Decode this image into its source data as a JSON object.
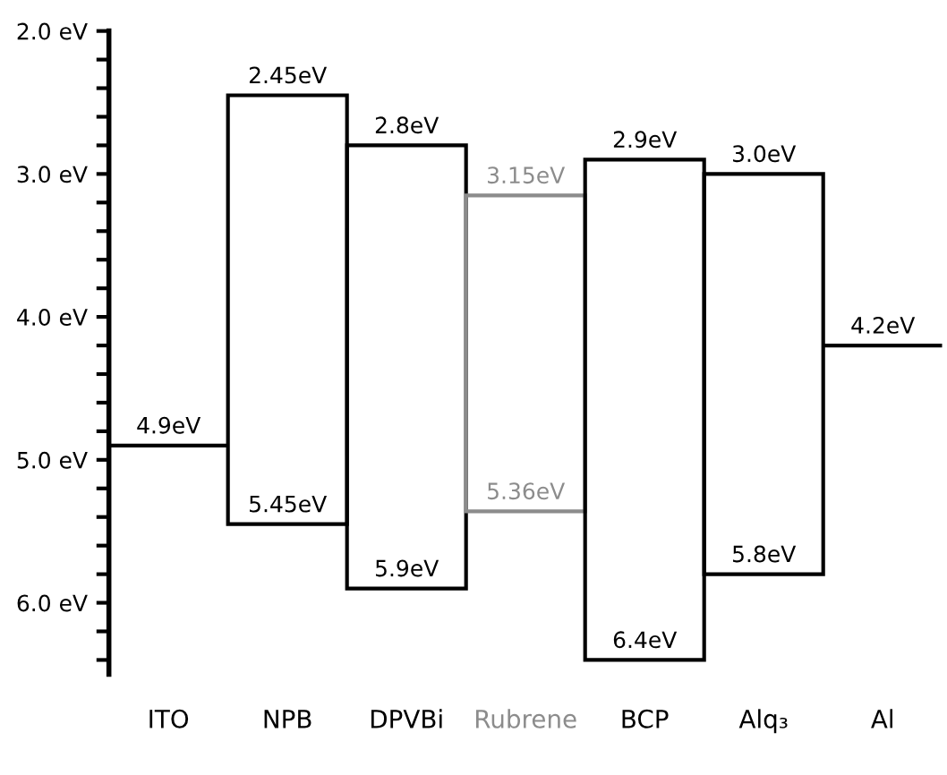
{
  "chart_data": {
    "type": "bar",
    "categories": [
      "ITO",
      "NPB",
      "DPVBi",
      "Rubrene",
      "BCP",
      "Alq₃",
      "Al"
    ],
    "base": [
      4.9,
      2.45,
      2.8,
      3.15,
      2.9,
      3.0,
      4.2
    ],
    "values": [
      0,
      3.0,
      3.1,
      2.21,
      3.5,
      2.8,
      0
    ],
    "colors": [
      "#000000",
      "#000000",
      "#000000",
      "#8c8c8c",
      "#000000",
      "#000000",
      "#000000"
    ],
    "ylim": [
      6.5,
      2.0
    ],
    "yticks": [
      {
        "value": 2.0,
        "label": "2.0 eV"
      },
      {
        "value": 2.2,
        "label": null
      },
      {
        "value": 2.4,
        "label": null
      },
      {
        "value": 2.6,
        "label": null
      },
      {
        "value": 2.8,
        "label": null
      },
      {
        "value": 3.0,
        "label": "3.0 eV"
      },
      {
        "value": 3.2,
        "label": null
      },
      {
        "value": 3.4,
        "label": null
      },
      {
        "value": 3.6,
        "label": null
      },
      {
        "value": 3.8,
        "label": null
      },
      {
        "value": 4.0,
        "label": "4.0 eV"
      },
      {
        "value": 4.2,
        "label": null
      },
      {
        "value": 4.4,
        "label": null
      },
      {
        "value": 4.6,
        "label": null
      },
      {
        "value": 4.8,
        "label": null
      },
      {
        "value": 5.0,
        "label": "5.0 eV"
      },
      {
        "value": 5.2,
        "label": null
      },
      {
        "value": 5.4,
        "label": null
      },
      {
        "value": 5.6,
        "label": null
      },
      {
        "value": 5.8,
        "label": null
      },
      {
        "value": 6.0,
        "label": "6.0 eV"
      },
      {
        "value": 6.2,
        "label": null
      },
      {
        "value": 6.4,
        "label": null
      }
    ],
    "annotations": [
      {
        "text": "4.9eV",
        "x": "ITO",
        "y": 4.9
      },
      {
        "text": "2.45eV",
        "x": "NPB",
        "y": 2.45
      },
      {
        "text": "5.45eV",
        "x": "NPB",
        "y": 5.45
      },
      {
        "text": "2.8eV",
        "x": "DPVBi",
        "y": 2.8
      },
      {
        "text": "5.9eV",
        "x": "DPVBi",
        "y": 5.9
      },
      {
        "text": "3.15eV",
        "x": "Rubrene",
        "y": 3.15
      },
      {
        "text": "5.36eV",
        "x": "Rubrene",
        "y": 5.36
      },
      {
        "text": "2.9eV",
        "x": "BCP",
        "y": 2.9
      },
      {
        "text": "6.4eV",
        "x": "BCP",
        "y": 6.4
      },
      {
        "text": "3.0eV",
        "x": "Alq₃",
        "y": 3.0
      },
      {
        "text": "5.8eV",
        "x": "Alq₃",
        "y": 5.8
      },
      {
        "text": "4.2eV",
        "x": "Al",
        "y": 4.2
      }
    ],
    "grid": false,
    "legend": false
  }
}
